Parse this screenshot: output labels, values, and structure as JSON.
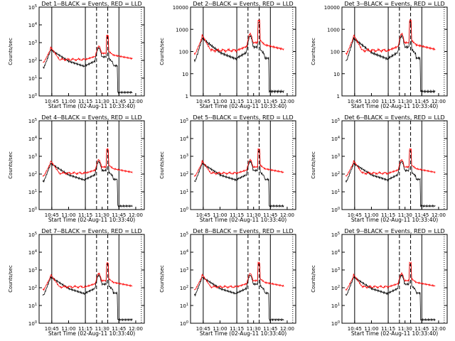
{
  "figure": {
    "xlabel": "Start Time (02-Aug-11 10:33:40)",
    "ylabel": "Counts/sec",
    "x_tick_labels": [
      "10:45",
      "11:00",
      "11:15",
      "11:30",
      "11:45",
      "12:00"
    ],
    "colors": {
      "events": "#000000",
      "lld": "#ff0000",
      "axes": "#000000"
    }
  },
  "chart_data": [
    {
      "type": "line",
      "title": "Det 1--BLACK = Events, RED = LLD",
      "yscale": "log",
      "ylim": [
        1,
        100000
      ],
      "y_tick_labels": [
        "10^0",
        "10^1",
        "10^2",
        "10^3",
        "10^4",
        "10^5"
      ],
      "series": [
        {
          "name": "BLACK = Events"
        },
        {
          "name": "RED = LLD"
        }
      ]
    },
    {
      "type": "line",
      "title": "Det 2--BLACK = Events, RED = LLD",
      "yscale": "log",
      "ylim": [
        1,
        10000
      ],
      "y_tick_labels": [
        "1",
        "10",
        "100",
        "1000",
        "10000"
      ],
      "series": [
        {
          "name": "BLACK = Events"
        },
        {
          "name": "RED = LLD"
        }
      ]
    },
    {
      "type": "line",
      "title": "Det 3--BLACK = Events, RED = LLD",
      "yscale": "log",
      "ylim": [
        1,
        10000
      ],
      "y_tick_labels": [
        "1",
        "10",
        "100",
        "1000",
        "10000"
      ],
      "series": [
        {
          "name": "BLACK = Events"
        },
        {
          "name": "RED = LLD"
        }
      ]
    },
    {
      "type": "line",
      "title": "Det 4--BLACK = Events, RED = LLD",
      "yscale": "log",
      "ylim": [
        1,
        100000
      ],
      "y_tick_labels": [
        "10^0",
        "10^1",
        "10^2",
        "10^3",
        "10^4",
        "10^5"
      ],
      "series": [
        {
          "name": "BLACK = Events"
        },
        {
          "name": "RED = LLD"
        }
      ]
    },
    {
      "type": "line",
      "title": "Det 5--BLACK = Events, RED = LLD",
      "yscale": "log",
      "ylim": [
        1,
        100000
      ],
      "y_tick_labels": [
        "10^0",
        "10^1",
        "10^2",
        "10^3",
        "10^4",
        "10^5"
      ],
      "series": [
        {
          "name": "BLACK = Events"
        },
        {
          "name": "RED = LLD"
        }
      ]
    },
    {
      "type": "line",
      "title": "Det 6--BLACK = Events, RED = LLD",
      "yscale": "log",
      "ylim": [
        1,
        100000
      ],
      "y_tick_labels": [
        "10^0",
        "10^1",
        "10^2",
        "10^3",
        "10^4",
        "10^5"
      ],
      "series": [
        {
          "name": "BLACK = Events"
        },
        {
          "name": "RED = LLD"
        }
      ]
    },
    {
      "type": "line",
      "title": "Det 7--BLACK = Events, RED = LLD",
      "yscale": "log",
      "ylim": [
        1,
        100000
      ],
      "y_tick_labels": [
        "10^0",
        "10^1",
        "10^2",
        "10^3",
        "10^4",
        "10^5"
      ],
      "series": [
        {
          "name": "BLACK = Events"
        },
        {
          "name": "RED = LLD"
        }
      ]
    },
    {
      "type": "line",
      "title": "Det 8--BLACK = Events, RED = LLD",
      "yscale": "log",
      "ylim": [
        1,
        100000
      ],
      "y_tick_labels": [
        "10^0",
        "10^1",
        "10^2",
        "10^3",
        "10^4",
        "10^5"
      ],
      "series": [
        {
          "name": "BLACK = Events"
        },
        {
          "name": "RED = LLD"
        }
      ]
    },
    {
      "type": "line",
      "title": "Det 9--BLACK = Events, RED = LLD",
      "yscale": "log",
      "ylim": [
        1,
        100000
      ],
      "y_tick_labels": [
        "10^0",
        "10^1",
        "10^2",
        "10^3",
        "10^4",
        "10^5"
      ],
      "series": [
        {
          "name": "BLACK = Events"
        },
        {
          "name": "RED = LLD"
        }
      ]
    }
  ]
}
